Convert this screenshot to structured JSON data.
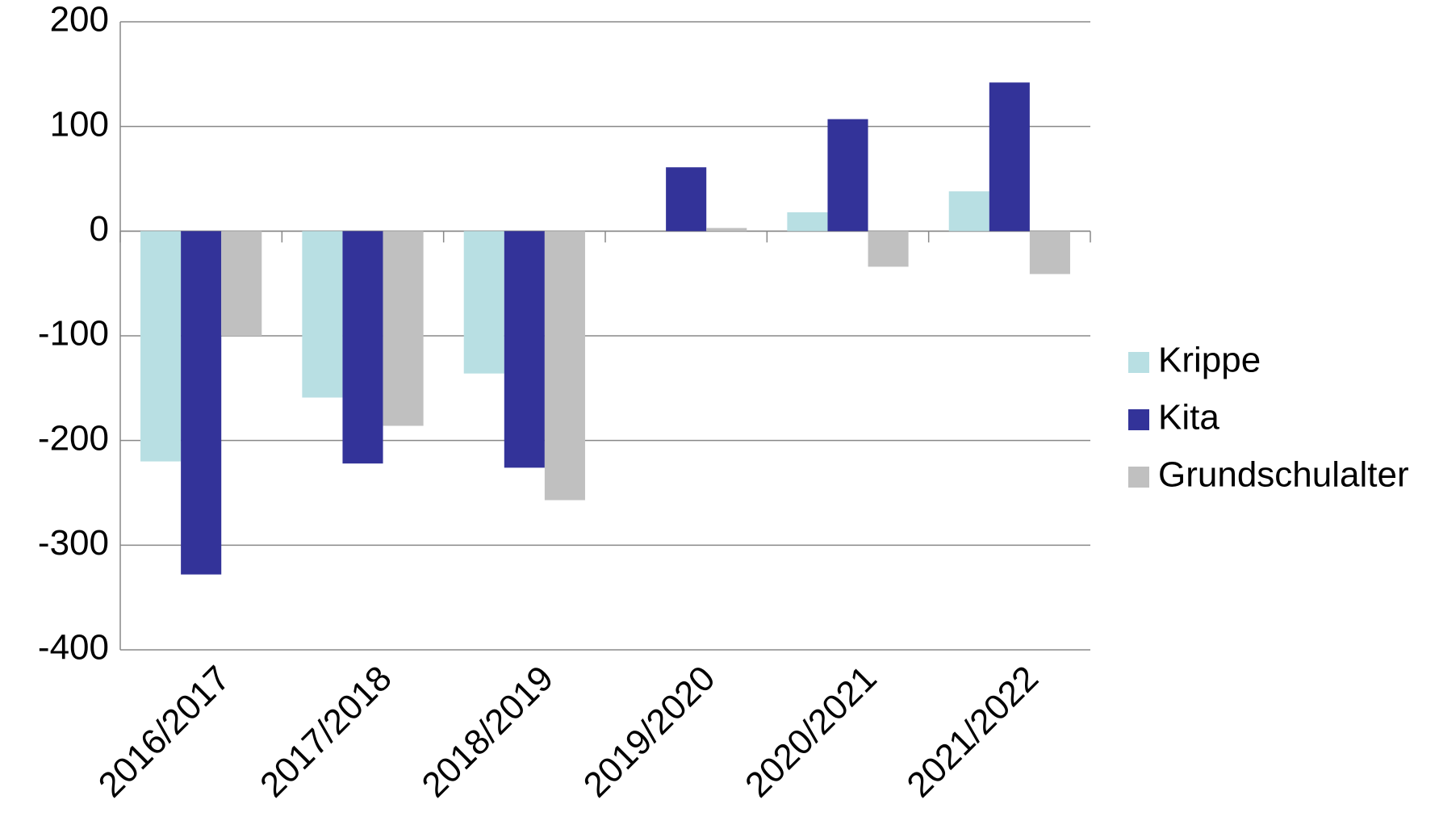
{
  "chart_data": {
    "type": "bar",
    "categories": [
      "2016/2017",
      "2017/2018",
      "2018/2019",
      "2019/2020",
      "2020/2021",
      "2021/2022"
    ],
    "series": [
      {
        "name": "Krippe",
        "color": "#b8dfe3",
        "values": [
          -220,
          -159,
          -136,
          0,
          18,
          38
        ]
      },
      {
        "name": "Kita",
        "color": "#333399",
        "values": [
          -328,
          -222,
          -226,
          61,
          107,
          142
        ]
      },
      {
        "name": "Grundschulalter",
        "color": "#c0c0c0",
        "values": [
          -100,
          -186,
          -257,
          3,
          -34,
          -41
        ]
      }
    ],
    "ylim": [
      -400,
      200
    ],
    "yticks": [
      -400,
      -300,
      -200,
      -100,
      0,
      100,
      200
    ],
    "grid": true,
    "legend": "right"
  }
}
